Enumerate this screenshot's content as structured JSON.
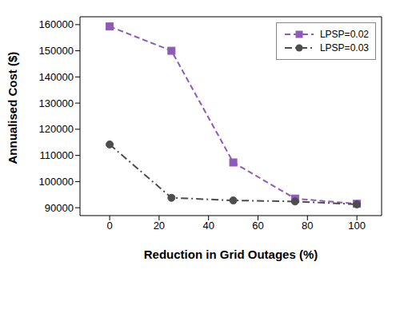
{
  "chart_data": {
    "type": "line",
    "x_label": "Reduction in Grid Outages (%)",
    "y_label": "Annualised Cost ($)",
    "x": [
      0,
      25,
      50,
      75,
      100
    ],
    "series": [
      {
        "name": "LPSP=0.02",
        "color": "#8e5bb8",
        "marker": "square",
        "line_style": "dashed",
        "values": [
          159300,
          150000,
          107300,
          93500,
          91500
        ]
      },
      {
        "name": "LPSP=0.03",
        "color": "#4d4d4d",
        "marker": "circle",
        "line_style": "dashdot",
        "values": [
          114200,
          93800,
          92800,
          92400,
          91300
        ]
      }
    ],
    "xlim": [
      -12,
      110
    ],
    "xticks": [
      0,
      20,
      40,
      60,
      80,
      100
    ],
    "ylim": [
      87000,
      163000
    ],
    "yticks": [
      90000,
      100000,
      110000,
      120000,
      130000,
      140000,
      150000,
      160000
    ],
    "grid": false,
    "legend": "upper right"
  }
}
